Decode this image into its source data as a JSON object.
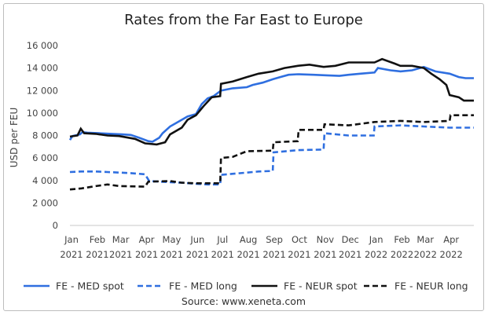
{
  "chart_data": {
    "type": "line",
    "title": "Rates from the Far East to Europe",
    "ylabel": "USD per FEU",
    "source": "Source: www.xeneta.com",
    "ylim": [
      0,
      16000
    ],
    "y_ticks": [
      0,
      2000,
      4000,
      6000,
      8000,
      10000,
      12000,
      14000,
      16000
    ],
    "y_tick_labels": [
      "0",
      "2 000",
      "4 000",
      "6 000",
      "8 000",
      "10 000",
      "12 000",
      "14 000",
      "16 000"
    ],
    "xlim": [
      "2021-01-01",
      "2022-04-30"
    ],
    "x_ticks": [
      {
        "date": "2021-01-01",
        "label": [
          "Jan",
          "2021"
        ]
      },
      {
        "date": "2021-02-01",
        "label": [
          "Feb",
          "2021"
        ]
      },
      {
        "date": "2021-03-01",
        "label": [
          "Mar",
          "2021"
        ]
      },
      {
        "date": "2021-04-01",
        "label": [
          "Apr",
          "2021"
        ]
      },
      {
        "date": "2021-05-01",
        "label": [
          "May",
          "2021"
        ]
      },
      {
        "date": "2021-06-01",
        "label": [
          "Jun",
          "2021"
        ]
      },
      {
        "date": "2021-07-01",
        "label": [
          "Jul",
          "2021"
        ]
      },
      {
        "date": "2021-08-01",
        "label": [
          "Aug",
          "2021"
        ]
      },
      {
        "date": "2021-09-01",
        "label": [
          "Sep",
          "2021"
        ]
      },
      {
        "date": "2021-10-01",
        "label": [
          "Oct",
          "2021"
        ]
      },
      {
        "date": "2021-11-01",
        "label": [
          "Nov",
          "2021"
        ]
      },
      {
        "date": "2021-12-01",
        "label": [
          "Dec",
          "2021"
        ]
      },
      {
        "date": "2022-01-01",
        "label": [
          "Jan",
          "2022"
        ]
      },
      {
        "date": "2022-02-01",
        "label": [
          "Feb",
          "2022"
        ]
      },
      {
        "date": "2022-03-01",
        "label": [
          "Mar",
          "2022"
        ]
      },
      {
        "date": "2022-04-01",
        "label": [
          "Apr",
          "2022"
        ]
      }
    ],
    "legend_position": "bottom",
    "grid": false,
    "series": [
      {
        "name": "FE - MED spot",
        "color": "#2f6fe0",
        "dash": "solid",
        "points": [
          [
            "2021-01-01",
            7600
          ],
          [
            "2021-01-04",
            7950
          ],
          [
            "2021-01-13",
            8100
          ],
          [
            "2021-01-16",
            8300
          ],
          [
            "2021-01-22",
            8250
          ],
          [
            "2021-02-05",
            8200
          ],
          [
            "2021-02-20",
            8150
          ],
          [
            "2021-03-05",
            8100
          ],
          [
            "2021-03-15",
            8050
          ],
          [
            "2021-03-25",
            7800
          ],
          [
            "2021-04-05",
            7500
          ],
          [
            "2021-04-10",
            7450
          ],
          [
            "2021-04-18",
            7800
          ],
          [
            "2021-04-22",
            8200
          ],
          [
            "2021-05-01",
            8800
          ],
          [
            "2021-05-08",
            9100
          ],
          [
            "2021-05-15",
            9400
          ],
          [
            "2021-05-22",
            9700
          ],
          [
            "2021-06-01",
            9900
          ],
          [
            "2021-06-08",
            10800
          ],
          [
            "2021-06-15",
            11300
          ],
          [
            "2021-06-22",
            11500
          ],
          [
            "2021-07-01",
            12000
          ],
          [
            "2021-07-15",
            12200
          ],
          [
            "2021-08-01",
            12300
          ],
          [
            "2021-08-08",
            12500
          ],
          [
            "2021-08-20",
            12700
          ],
          [
            "2021-09-01",
            13000
          ],
          [
            "2021-09-10",
            13200
          ],
          [
            "2021-09-20",
            13400
          ],
          [
            "2021-10-01",
            13450
          ],
          [
            "2021-10-20",
            13400
          ],
          [
            "2021-11-05",
            13350
          ],
          [
            "2021-11-20",
            13300
          ],
          [
            "2021-12-01",
            13400
          ],
          [
            "2021-12-15",
            13500
          ],
          [
            "2022-01-01",
            13600
          ],
          [
            "2022-01-05",
            14000
          ],
          [
            "2022-01-20",
            13800
          ],
          [
            "2022-02-01",
            13700
          ],
          [
            "2022-02-15",
            13800
          ],
          [
            "2022-03-01",
            14100
          ],
          [
            "2022-03-15",
            13700
          ],
          [
            "2022-04-01",
            13500
          ],
          [
            "2022-04-12",
            13200
          ],
          [
            "2022-04-20",
            13100
          ],
          [
            "2022-04-30",
            13100
          ]
        ]
      },
      {
        "name": "FE - MED long",
        "color": "#2f6fe0",
        "dash": "dashed",
        "points": [
          [
            "2021-01-01",
            4750
          ],
          [
            "2021-01-15",
            4800
          ],
          [
            "2021-02-01",
            4800
          ],
          [
            "2021-02-15",
            4750
          ],
          [
            "2021-03-01",
            4700
          ],
          [
            "2021-03-15",
            4650
          ],
          [
            "2021-04-01",
            4550
          ],
          [
            "2021-04-06",
            3950
          ],
          [
            "2021-05-01",
            3850
          ],
          [
            "2021-05-15",
            3800
          ],
          [
            "2021-06-01",
            3700
          ],
          [
            "2021-06-15",
            3650
          ],
          [
            "2021-06-30",
            3650
          ],
          [
            "2021-07-01",
            4500
          ],
          [
            "2021-08-01",
            4700
          ],
          [
            "2021-08-15",
            4800
          ],
          [
            "2021-09-01",
            4850
          ],
          [
            "2021-09-02",
            6500
          ],
          [
            "2021-10-01",
            6700
          ],
          [
            "2021-11-01",
            6750
          ],
          [
            "2021-11-02",
            8200
          ],
          [
            "2021-12-01",
            8000
          ],
          [
            "2021-12-31",
            8000
          ],
          [
            "2022-01-01",
            8800
          ],
          [
            "2022-02-01",
            8900
          ],
          [
            "2022-03-01",
            8800
          ],
          [
            "2022-04-01",
            8700
          ],
          [
            "2022-04-30",
            8700
          ]
        ]
      },
      {
        "name": "FE - NEUR spot",
        "color": "#111111",
        "dash": "solid",
        "points": [
          [
            "2021-01-01",
            7900
          ],
          [
            "2021-01-10",
            8000
          ],
          [
            "2021-01-14",
            8600
          ],
          [
            "2021-01-18",
            8200
          ],
          [
            "2021-02-01",
            8150
          ],
          [
            "2021-02-15",
            8000
          ],
          [
            "2021-03-01",
            7950
          ],
          [
            "2021-03-20",
            7700
          ],
          [
            "2021-04-01",
            7300
          ],
          [
            "2021-04-15",
            7200
          ],
          [
            "2021-04-25",
            7400
          ],
          [
            "2021-05-01",
            8100
          ],
          [
            "2021-05-15",
            8700
          ],
          [
            "2021-05-22",
            9400
          ],
          [
            "2021-06-01",
            9800
          ],
          [
            "2021-06-10",
            10600
          ],
          [
            "2021-06-20",
            11400
          ],
          [
            "2021-06-30",
            11500
          ],
          [
            "2021-07-01",
            12600
          ],
          [
            "2021-07-15",
            12800
          ],
          [
            "2021-08-01",
            13200
          ],
          [
            "2021-08-15",
            13500
          ],
          [
            "2021-09-01",
            13700
          ],
          [
            "2021-09-15",
            14000
          ],
          [
            "2021-10-01",
            14200
          ],
          [
            "2021-10-15",
            14300
          ],
          [
            "2021-11-01",
            14100
          ],
          [
            "2021-11-15",
            14200
          ],
          [
            "2021-12-01",
            14500
          ],
          [
            "2021-12-20",
            14500
          ],
          [
            "2022-01-01",
            14500
          ],
          [
            "2022-01-10",
            14800
          ],
          [
            "2022-01-25",
            14400
          ],
          [
            "2022-02-01",
            14200
          ],
          [
            "2022-02-15",
            14200
          ],
          [
            "2022-03-01",
            14000
          ],
          [
            "2022-03-10",
            13500
          ],
          [
            "2022-03-20",
            13000
          ],
          [
            "2022-03-28",
            12500
          ],
          [
            "2022-04-01",
            11600
          ],
          [
            "2022-04-12",
            11400
          ],
          [
            "2022-04-18",
            11100
          ],
          [
            "2022-04-30",
            11100
          ]
        ]
      },
      {
        "name": "FE - NEUR long",
        "color": "#111111",
        "dash": "dashed",
        "points": [
          [
            "2021-01-01",
            3200
          ],
          [
            "2021-01-15",
            3300
          ],
          [
            "2021-02-01",
            3500
          ],
          [
            "2021-02-15",
            3650
          ],
          [
            "2021-03-01",
            3500
          ],
          [
            "2021-04-01",
            3450
          ],
          [
            "2021-04-05",
            3900
          ],
          [
            "2021-05-01",
            3950
          ],
          [
            "2021-05-15",
            3800
          ],
          [
            "2021-06-01",
            3750
          ],
          [
            "2021-06-30",
            3750
          ],
          [
            "2021-07-01",
            6000
          ],
          [
            "2021-07-15",
            6100
          ],
          [
            "2021-08-01",
            6600
          ],
          [
            "2021-09-01",
            6650
          ],
          [
            "2021-09-02",
            7400
          ],
          [
            "2021-10-01",
            7500
          ],
          [
            "2021-10-02",
            8500
          ],
          [
            "2021-11-01",
            8500
          ],
          [
            "2021-11-02",
            9000
          ],
          [
            "2021-12-01",
            8900
          ],
          [
            "2022-01-01",
            9200
          ],
          [
            "2022-02-01",
            9300
          ],
          [
            "2022-03-01",
            9200
          ],
          [
            "2022-04-01",
            9300
          ],
          [
            "2022-04-02",
            9800
          ],
          [
            "2022-04-30",
            9800
          ]
        ]
      }
    ]
  }
}
